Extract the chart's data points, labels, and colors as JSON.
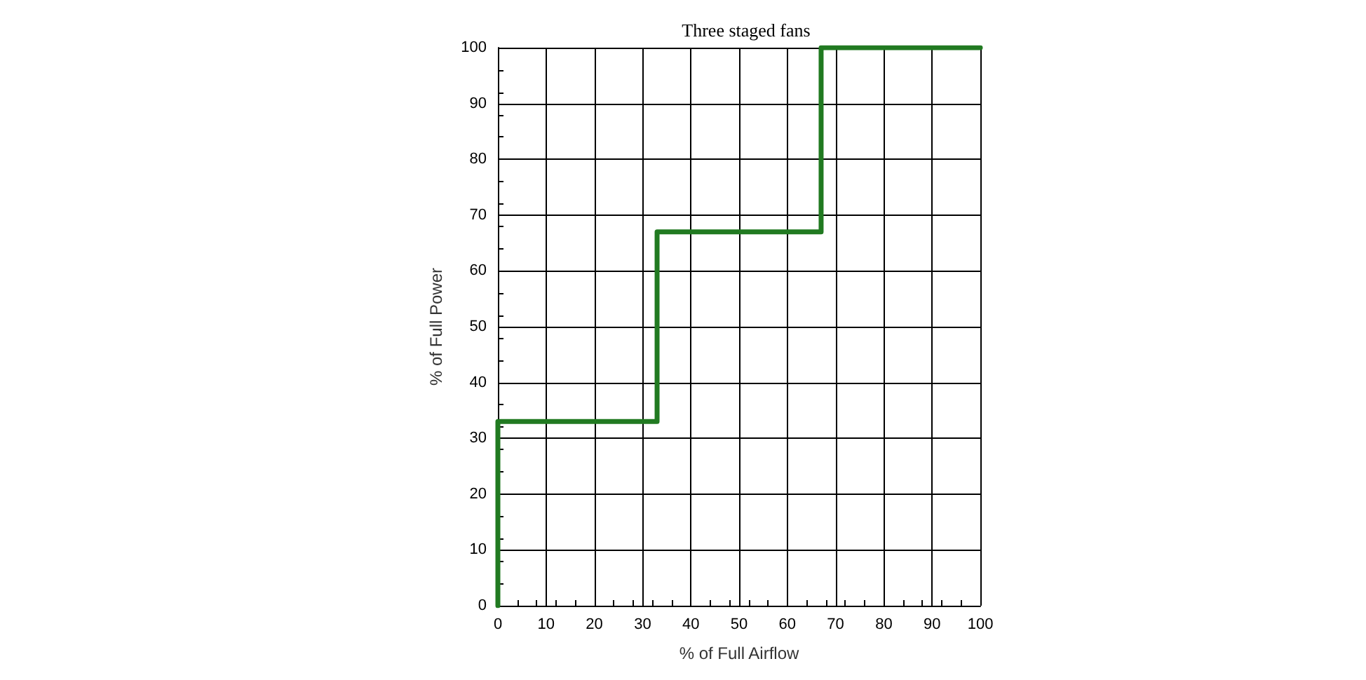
{
  "chart_data": {
    "type": "step",
    "title": "Three staged fans",
    "xlabel": "% of Full Airflow",
    "ylabel": "% of Full Power",
    "x": [
      0,
      0,
      33,
      67,
      100
    ],
    "series": [
      {
        "color": "#217a21",
        "values": [
          0,
          33,
          67,
          100,
          100
        ]
      }
    ],
    "xlim": [
      0,
      100
    ],
    "xticks": [
      0,
      10,
      20,
      30,
      40,
      50,
      60,
      70,
      80,
      90,
      100
    ],
    "ylim": [
      0,
      100
    ],
    "yticks": [
      0,
      10,
      20,
      30,
      40,
      50,
      60,
      70,
      80,
      90,
      100
    ],
    "grid": true,
    "marker": "none",
    "line_style": "solid"
  }
}
